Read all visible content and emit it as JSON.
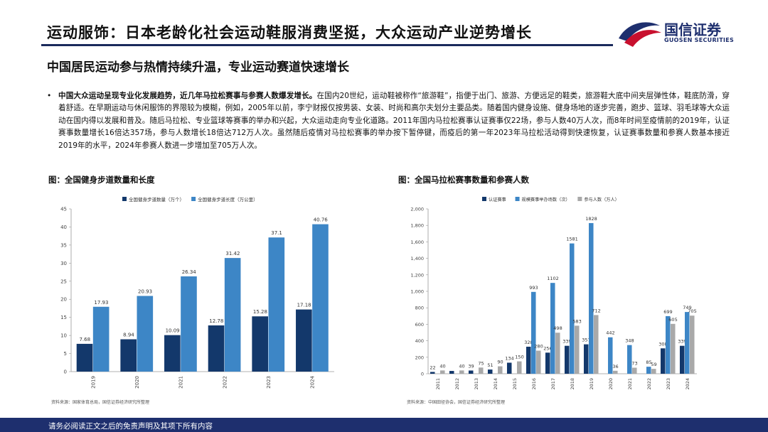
{
  "header": {
    "title": "运动服饰：日本老龄化社会运动鞋服消费坚挺，大众运动产业逆势增长",
    "logo_name": "国信证券",
    "logo_sub": "GUOSEN SECURITIES",
    "brand_color": "#1e2f6e",
    "logo_accent": "#c8102e"
  },
  "subtitle": "中国居民运动参与热情持续升温，专业运动赛道快速增长",
  "bullet": {
    "lead": "中国大众运动呈现专业化发展趋势，近几年马拉松赛事与参赛人数爆发增长。",
    "body": "在国内20世纪，运动鞋被称作“旅游鞋”，指便于出门、旅游、方便远足的鞋类，旅游鞋大底中间夹层弹性体，鞋底防滑，穿着舒适。在早期运动与休闲服饰的界限较为模糊，例如，2005年以前，李宁财报仅按男装、女装、时尚和高尔夫划分主要品类。随着国内健身设施、健身场地的逐步完善，跑步、篮球、羽毛球等大众运动在国内得以发展和普及。随后马拉松、专业篮球等赛事的举办和兴起，大众运动走向专业化道路。2011年国内马拉松赛事认证赛事仅22场，参与人数40万人次，而8年时间至疫情前的2019年，认证赛事数量增长16倍达357场，参与人数增长18倍达712万人次。虽然随后疫情对马拉松赛事的举办按下暂停键，而疫后的第一年2023年马拉松活动得到快速恢复，认证赛事数量和参赛人数基本接近2019年的水平，2024年参赛人数进一步增加至705万人次。"
  },
  "fig1": {
    "title": "图：全国健身步道数量和长度",
    "source": "资料来源：国家体育总局，国信证券经济研究所整理"
  },
  "fig2": {
    "title": "图：全国马拉松赛事数量和参赛人数",
    "source": "资料来源：中国田径协会，国信证券经济研究所整理"
  },
  "footer": "请务必阅读正文之后的免责声明及其项下所有内容",
  "chart_data": [
    {
      "type": "bar",
      "categories": [
        "2019",
        "2020",
        "2021",
        "2022",
        "2023",
        "2024"
      ],
      "series": [
        {
          "name": "全国健身步道数量（万个）",
          "values": [
            7.68,
            8.94,
            10.09,
            12.78,
            15.28,
            17.18
          ],
          "color": "#13386b"
        },
        {
          "name": "全国健身步道长度（万公里）",
          "values": [
            17.93,
            20.93,
            26.34,
            31.42,
            37.1,
            40.76
          ],
          "color": "#3d86c6"
        }
      ],
      "value_labels": [
        [
          "7.68",
          "8.94",
          "10.09",
          "12.78",
          "15.28",
          "17.18"
        ],
        [
          "17.93",
          "20.93",
          "26.34",
          "31.42",
          "37.1",
          "40.76"
        ]
      ],
      "yticks": [
        "0",
        "5",
        "10",
        "15",
        "20",
        "25",
        "30",
        "35",
        "40",
        "45"
      ],
      "ylim": [
        0,
        45
      ],
      "legend": "top",
      "grid": false
    },
    {
      "type": "bar",
      "categories": [
        "2011",
        "2012",
        "2013",
        "2014",
        "2015",
        "2016",
        "2017",
        "2018",
        "2019",
        "2020",
        "2021",
        "2022",
        "2023",
        "2024"
      ],
      "series": [
        {
          "name": "认证赛事",
          "values": [
            22,
            34,
            39,
            51,
            134,
            328,
            256,
            339,
            357,
            null,
            null,
            null,
            308,
            339
          ],
          "color": "#13386b"
        },
        {
          "name": "规模赛事举办场数（次）",
          "values": [
            null,
            null,
            null,
            null,
            null,
            993,
            1102,
            1581,
            1828,
            442,
            348,
            85,
            699,
            749
          ],
          "color": "#3d86c6"
        },
        {
          "name": "参与人数（万人）",
          "values": [
            40,
            40,
            75,
            90,
            150,
            280,
            498,
            583,
            712,
            36,
            73,
            59,
            605,
            705
          ],
          "color": "#a9a9a9"
        }
      ],
      "value_labels": [
        [
          "22",
          "",
          "39",
          "51",
          "134",
          "328",
          "256",
          "339",
          "357",
          "",
          "",
          "",
          "308",
          "339"
        ],
        [
          "",
          "",
          "",
          "",
          "",
          "993",
          "1102",
          "1581",
          "1828",
          "442",
          "348",
          "85",
          "699",
          "749"
        ],
        [
          "40",
          "40",
          "75",
          "90",
          "150",
          "280",
          "498",
          "583",
          "712",
          "36",
          "73",
          "59",
          "605",
          "705"
        ]
      ],
      "yticks": [
        "0",
        "200",
        "400",
        "600",
        "800",
        "1,000",
        "1,200",
        "1,400",
        "1,600",
        "1,800",
        "2,000"
      ],
      "ylim": [
        0,
        2000
      ],
      "legend": "top",
      "grid": false
    }
  ]
}
